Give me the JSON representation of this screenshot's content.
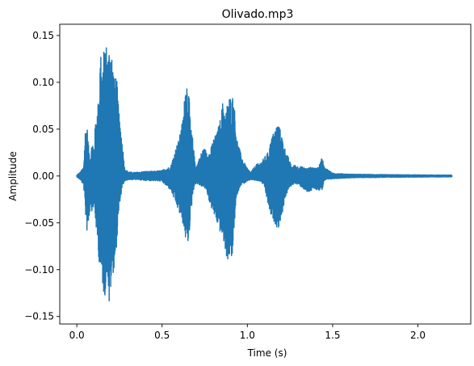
{
  "chart_data": {
    "type": "line",
    "title": "Olivado.mp3",
    "xlabel": "Time (s)",
    "ylabel": "Amplitude",
    "xlim": [
      -0.1,
      2.31
    ],
    "ylim": [
      -0.158,
      0.162
    ],
    "x_ticks": [
      0.0,
      0.5,
      1.0,
      1.5,
      2.0
    ],
    "x_tick_labels": [
      "0.0",
      "0.5",
      "1.0",
      "1.5",
      "2.0"
    ],
    "y_ticks": [
      -0.15,
      -0.1,
      -0.05,
      0.0,
      0.05,
      0.1,
      0.15
    ],
    "y_tick_labels": [
      "−0.15",
      "−0.10",
      "−0.05",
      "0.00",
      "0.05",
      "0.10",
      "0.15"
    ],
    "grid": false,
    "series": [
      {
        "color": "#1f77b4",
        "envelope_x": [
          0.0,
          0.02,
          0.04,
          0.05,
          0.06,
          0.07,
          0.08,
          0.09,
          0.1,
          0.11,
          0.12,
          0.13,
          0.14,
          0.15,
          0.16,
          0.17,
          0.18,
          0.19,
          0.2,
          0.21,
          0.22,
          0.23,
          0.24,
          0.25,
          0.26,
          0.27,
          0.28,
          0.29,
          0.3,
          0.32,
          0.35,
          0.4,
          0.45,
          0.5,
          0.52,
          0.55,
          0.58,
          0.6,
          0.62,
          0.63,
          0.64,
          0.65,
          0.66,
          0.67,
          0.68,
          0.69,
          0.7,
          0.72,
          0.74,
          0.76,
          0.78,
          0.8,
          0.82,
          0.84,
          0.86,
          0.87,
          0.88,
          0.89,
          0.9,
          0.91,
          0.92,
          0.93,
          0.94,
          0.96,
          0.98,
          1.0,
          1.02,
          1.05,
          1.08,
          1.1,
          1.12,
          1.14,
          1.16,
          1.18,
          1.2,
          1.22,
          1.24,
          1.26,
          1.28,
          1.3,
          1.32,
          1.35,
          1.38,
          1.4,
          1.42,
          1.43,
          1.44,
          1.45,
          1.5,
          1.6,
          1.8,
          2.0,
          2.2
        ],
        "envelope_upper": [
          0.001,
          0.004,
          0.01,
          0.05,
          0.055,
          0.03,
          0.02,
          0.04,
          0.03,
          0.06,
          0.07,
          0.09,
          0.145,
          0.1,
          0.14,
          0.148,
          0.13,
          0.14,
          0.147,
          0.125,
          0.105,
          0.112,
          0.09,
          0.06,
          0.05,
          0.03,
          0.01,
          0.006,
          0.005,
          0.004,
          0.004,
          0.005,
          0.005,
          0.006,
          0.008,
          0.01,
          0.03,
          0.04,
          0.06,
          0.08,
          0.11,
          0.1,
          0.08,
          0.05,
          0.04,
          0.02,
          0.01,
          0.02,
          0.03,
          0.028,
          0.025,
          0.04,
          0.045,
          0.06,
          0.085,
          0.065,
          0.075,
          0.088,
          0.085,
          0.087,
          0.086,
          0.06,
          0.04,
          0.025,
          0.015,
          0.008,
          0.004,
          0.012,
          0.015,
          0.02,
          0.025,
          0.04,
          0.05,
          0.058,
          0.045,
          0.03,
          0.02,
          0.01,
          0.012,
          0.01,
          0.01,
          0.008,
          0.01,
          0.008,
          0.01,
          0.018,
          0.02,
          0.01,
          0.003,
          0.002,
          0.0015,
          0.0012,
          0.001
        ],
        "envelope_lower": [
          -0.001,
          -0.004,
          -0.01,
          -0.04,
          -0.06,
          -0.05,
          -0.03,
          -0.04,
          -0.03,
          -0.05,
          -0.07,
          -0.09,
          -0.11,
          -0.115,
          -0.13,
          -0.125,
          -0.1,
          -0.145,
          -0.12,
          -0.105,
          -0.1,
          -0.082,
          -0.06,
          -0.03,
          -0.02,
          -0.01,
          -0.006,
          -0.005,
          -0.004,
          -0.004,
          -0.004,
          -0.005,
          -0.005,
          -0.006,
          -0.01,
          -0.015,
          -0.03,
          -0.04,
          -0.05,
          -0.06,
          -0.07,
          -0.076,
          -0.06,
          -0.04,
          -0.02,
          -0.01,
          -0.008,
          -0.01,
          -0.012,
          -0.015,
          -0.03,
          -0.04,
          -0.05,
          -0.06,
          -0.07,
          -0.08,
          -0.088,
          -0.093,
          -0.08,
          -0.1,
          -0.06,
          -0.04,
          -0.02,
          -0.01,
          -0.008,
          -0.006,
          -0.004,
          -0.005,
          -0.006,
          -0.012,
          -0.03,
          -0.045,
          -0.05,
          -0.057,
          -0.045,
          -0.025,
          -0.015,
          -0.01,
          -0.008,
          -0.01,
          -0.012,
          -0.018,
          -0.016,
          -0.014,
          -0.016,
          -0.014,
          -0.015,
          -0.005,
          -0.003,
          -0.002,
          -0.0015,
          -0.0012,
          -0.001
        ]
      }
    ]
  }
}
